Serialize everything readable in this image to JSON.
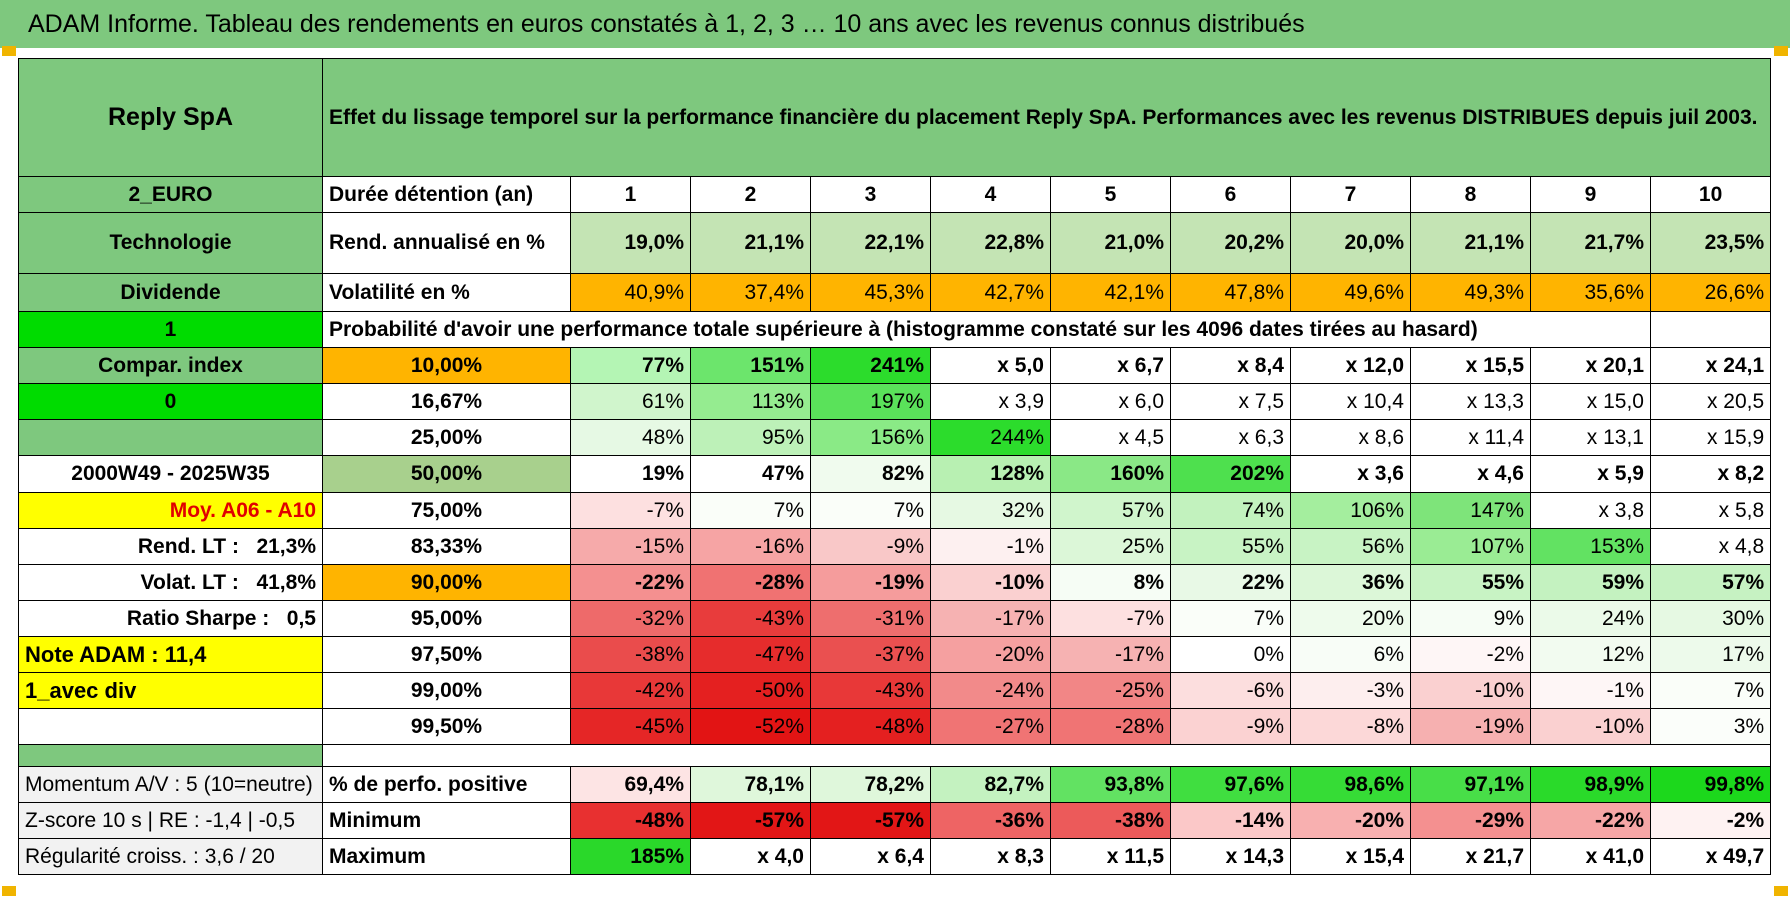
{
  "title": "ADAM Informe. Tableau des rendements en euros constatés à 1, 2, 3 … 10 ans avec les revenus connus distribués",
  "left": {
    "name": "Reply SpA",
    "currency": "2_EURO",
    "sector": "Technologie",
    "dividend": "Dividende",
    "flag1": "1",
    "compar_index": "Compar. index",
    "flag0": "0",
    "period": "2000W49 - 2025W35",
    "moy": "Moy. A06 - A10",
    "rend_lt_label": "Rend. LT :",
    "rend_lt_value": "21,3%",
    "volat_lt_label": "Volat. LT :",
    "volat_lt_value": "41,8%",
    "sharpe_label": "Ratio Sharpe :",
    "sharpe_value": "0,5",
    "note_adam": "Note ADAM : 11,4",
    "avec_div": "1_avec div",
    "momentum": "Momentum A/V : 5 (10=neutre)",
    "zscore": "Z-score 10 s | RE : -1,4 | -0,5",
    "regularite": "Régularité croiss. : 3,6 / 20"
  },
  "header_text": "Effet du lissage temporel sur la performance financière du placement Reply SpA. Performances avec les revenus DISTRIBUES depuis juil 2003.",
  "years_label": "Durée détention (an)",
  "years": [
    "1",
    "2",
    "3",
    "4",
    "5",
    "6",
    "7",
    "8",
    "9",
    "10"
  ],
  "rend_label": "Rend. annualisé en %",
  "rend": [
    "19,0%",
    "21,1%",
    "22,1%",
    "22,8%",
    "21,0%",
    "20,2%",
    "20,0%",
    "21,1%",
    "21,7%",
    "23,5%"
  ],
  "vol_label": "Volatilité en %",
  "vol": [
    "40,9%",
    "37,4%",
    "45,3%",
    "42,7%",
    "42,1%",
    "47,8%",
    "49,6%",
    "49,3%",
    "35,6%",
    "26,6%"
  ],
  "prob_text": "Probabilité d'avoir une performance totale supérieure à (histogramme constaté sur les 4096 dates tirées au hasard)",
  "prob_rows": [
    {
      "pct": "10,00%",
      "cells": [
        "77%",
        "151%",
        "241%",
        "x 5,0",
        "x 6,7",
        "x 8,4",
        "x 12,0",
        "x 15,5",
        "x 20,1",
        "x 24,1"
      ]
    },
    {
      "pct": "16,67%",
      "cells": [
        "61%",
        "113%",
        "197%",
        "x 3,9",
        "x 6,0",
        "x 7,5",
        "x 10,4",
        "x 13,3",
        "x 15,0",
        "x 20,5"
      ]
    },
    {
      "pct": "25,00%",
      "cells": [
        "48%",
        "95%",
        "156%",
        "244%",
        "x 4,5",
        "x 6,3",
        "x 8,6",
        "x 11,4",
        "x 13,1",
        "x 15,9"
      ]
    },
    {
      "pct": "50,00%",
      "cells": [
        "19%",
        "47%",
        "82%",
        "128%",
        "160%",
        "202%",
        "x 3,6",
        "x 4,6",
        "x 5,9",
        "x 8,2"
      ]
    },
    {
      "pct": "75,00%",
      "cells": [
        "-7%",
        "7%",
        "7%",
        "32%",
        "57%",
        "74%",
        "106%",
        "147%",
        "x 3,8",
        "x 5,8"
      ]
    },
    {
      "pct": "83,33%",
      "cells": [
        "-15%",
        "-16%",
        "-9%",
        "-1%",
        "25%",
        "55%",
        "56%",
        "107%",
        "153%",
        "x 4,8"
      ]
    },
    {
      "pct": "90,00%",
      "cells": [
        "-22%",
        "-28%",
        "-19%",
        "-10%",
        "8%",
        "22%",
        "36%",
        "55%",
        "59%",
        "57%"
      ]
    },
    {
      "pct": "95,00%",
      "cells": [
        "-32%",
        "-43%",
        "-31%",
        "-17%",
        "-7%",
        "7%",
        "20%",
        "9%",
        "24%",
        "30%"
      ]
    },
    {
      "pct": "97,50%",
      "cells": [
        "-38%",
        "-47%",
        "-37%",
        "-20%",
        "-17%",
        "0%",
        "6%",
        "-2%",
        "12%",
        "17%"
      ]
    },
    {
      "pct": "99,00%",
      "cells": [
        "-42%",
        "-50%",
        "-43%",
        "-24%",
        "-25%",
        "-6%",
        "-3%",
        "-10%",
        "-1%",
        "7%"
      ]
    },
    {
      "pct": "99,50%",
      "cells": [
        "-45%",
        "-52%",
        "-48%",
        "-27%",
        "-28%",
        "-9%",
        "-8%",
        "-19%",
        "-10%",
        "3%"
      ]
    }
  ],
  "pos_label": "% de perfo. positive",
  "pos": [
    "69,4%",
    "78,1%",
    "78,2%",
    "82,7%",
    "93,8%",
    "97,6%",
    "98,6%",
    "97,1%",
    "98,9%",
    "99,8%"
  ],
  "min_label": "Minimum",
  "min": [
    "-48%",
    "-57%",
    "-57%",
    "-36%",
    "-38%",
    "-14%",
    "-20%",
    "-29%",
    "-22%",
    "-2%"
  ],
  "max_label": "Maximum",
  "max": [
    "185%",
    "x 4,0",
    "x 6,4",
    "x 8,3",
    "x 11,5",
    "x 14,3",
    "x 15,4",
    "x 21,7",
    "x 41,0",
    "x 49,7"
  ],
  "colors": {
    "header_green": "#7ec87e",
    "bright_green": "#00dc00",
    "orange": "#ffb400",
    "yellow": "#ffff00",
    "label_red": "#e00000"
  }
}
